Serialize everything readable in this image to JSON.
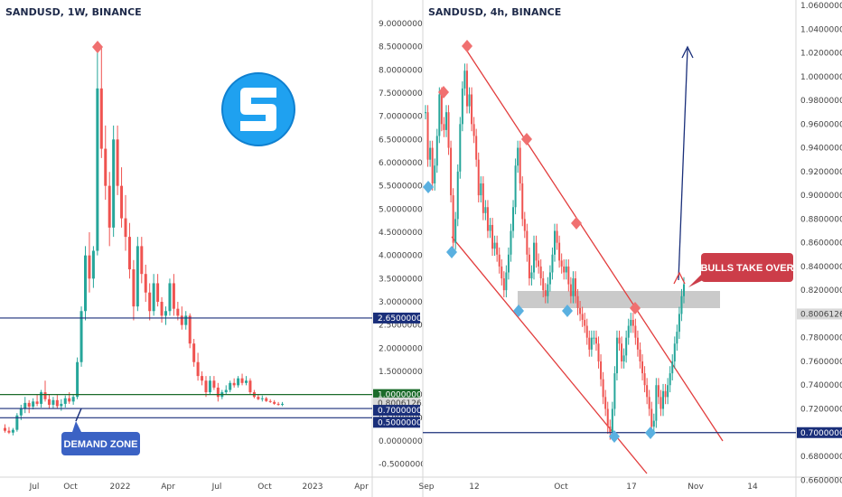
{
  "chart_data": [
    {
      "type": "candlestick",
      "title": "SANDUSD, 1W, BINANCE",
      "x_ticks": [
        "Jul",
        "Oct",
        "2022",
        "Apr",
        "Jul",
        "Oct",
        "2023",
        "Apr"
      ],
      "y_ticks": [
        "9.00000000",
        "8.50000000",
        "8.00000000",
        "7.50000000",
        "7.00000000",
        "6.50000000",
        "6.00000000",
        "5.50000000",
        "5.00000000",
        "4.50000000",
        "4.00000000",
        "3.50000000",
        "3.00000000",
        "2.50000000",
        "2.00000000",
        "1.50000000",
        "1.00000000",
        "0.50000000",
        "0.00000000",
        "-0.50000000"
      ],
      "ylim": [
        -0.5,
        9.5
      ],
      "price_tags": [
        {
          "label": "2.65000000",
          "value": 2.65,
          "color": "#1a2f7a"
        },
        {
          "label": "1.00000000",
          "value": 1.0,
          "color": "#1b6b2a"
        },
        {
          "label": "0.80061265",
          "value": 0.8,
          "color": "#d9d9d9"
        },
        {
          "label": "0.70000000",
          "value": 0.7,
          "color": "#1a2f7a"
        },
        {
          "label": "0.50000000",
          "value": 0.5,
          "color": "#1a2f7a"
        }
      ],
      "annotations": [
        "DEMAND ZONE"
      ],
      "series": [
        {
          "values": [
            [
              0.28,
              0.36,
              0.18,
              0.22
            ],
            [
              0.22,
              0.3,
              0.15,
              0.18
            ],
            [
              0.18,
              0.28,
              0.12,
              0.24
            ],
            [
              0.24,
              0.6,
              0.2,
              0.55
            ],
            [
              0.55,
              0.78,
              0.45,
              0.7
            ],
            [
              0.7,
              0.95,
              0.6,
              0.82
            ],
            [
              0.82,
              0.88,
              0.6,
              0.74
            ],
            [
              0.74,
              0.92,
              0.68,
              0.85
            ],
            [
              0.85,
              1.0,
              0.75,
              0.8
            ],
            [
              0.8,
              1.1,
              0.72,
              1.05
            ],
            [
              1.05,
              1.3,
              0.85,
              0.9
            ],
            [
              0.9,
              1.0,
              0.7,
              0.78
            ],
            [
              0.78,
              0.95,
              0.7,
              0.88
            ],
            [
              0.88,
              1.0,
              0.7,
              0.75
            ],
            [
              0.75,
              0.9,
              0.65,
              0.8
            ],
            [
              0.8,
              0.98,
              0.72,
              0.92
            ],
            [
              0.92,
              1.05,
              0.8,
              0.85
            ],
            [
              0.85,
              1.0,
              0.78,
              0.95
            ],
            [
              0.95,
              1.8,
              0.9,
              1.7
            ],
            [
              1.7,
              2.9,
              1.6,
              2.8
            ],
            [
              2.8,
              4.2,
              2.6,
              4.0
            ],
            [
              4.0,
              4.5,
              3.2,
              3.5
            ],
            [
              3.5,
              4.2,
              3.3,
              4.1
            ],
            [
              4.1,
              8.4,
              4.0,
              7.6
            ],
            [
              7.6,
              8.5,
              6.1,
              6.3
            ],
            [
              6.3,
              6.8,
              5.2,
              5.5
            ],
            [
              5.5,
              5.8,
              4.2,
              4.6
            ],
            [
              4.6,
              6.8,
              4.4,
              6.5
            ],
            [
              6.5,
              6.8,
              5.3,
              5.5
            ],
            [
              5.5,
              5.9,
              4.6,
              4.8
            ],
            [
              4.8,
              5.3,
              4.1,
              4.4
            ],
            [
              4.4,
              4.7,
              3.5,
              3.7
            ],
            [
              3.7,
              3.9,
              2.6,
              2.9
            ],
            [
              2.9,
              4.4,
              2.8,
              4.2
            ],
            [
              4.2,
              4.4,
              3.4,
              3.6
            ],
            [
              3.6,
              3.8,
              3.0,
              3.2
            ],
            [
              3.2,
              3.4,
              2.6,
              2.8
            ],
            [
              2.8,
              3.6,
              2.7,
              3.4
            ],
            [
              3.4,
              3.6,
              2.9,
              3.0
            ],
            [
              3.0,
              3.1,
              2.55,
              2.7
            ],
            [
              2.7,
              2.9,
              2.5,
              2.8
            ],
            [
              2.8,
              3.5,
              2.7,
              3.4
            ],
            [
              3.4,
              3.6,
              2.7,
              2.85
            ],
            [
              2.85,
              3.0,
              2.6,
              2.7
            ],
            [
              2.7,
              2.9,
              2.4,
              2.5
            ],
            [
              2.5,
              2.8,
              2.4,
              2.7
            ],
            [
              2.7,
              2.75,
              2.0,
              2.1
            ],
            [
              2.1,
              2.2,
              1.6,
              1.7
            ],
            [
              1.7,
              1.9,
              1.3,
              1.4
            ],
            [
              1.4,
              1.5,
              1.2,
              1.3
            ],
            [
              1.3,
              1.4,
              0.95,
              1.05
            ],
            [
              1.05,
              1.4,
              1.0,
              1.3
            ],
            [
              1.3,
              1.4,
              1.1,
              1.15
            ],
            [
              1.15,
              1.25,
              0.85,
              0.95
            ],
            [
              0.95,
              1.1,
              0.9,
              1.05
            ],
            [
              1.05,
              1.2,
              1.0,
              1.1
            ],
            [
              1.1,
              1.3,
              1.05,
              1.25
            ],
            [
              1.25,
              1.35,
              1.15,
              1.2
            ],
            [
              1.2,
              1.4,
              1.15,
              1.35
            ],
            [
              1.35,
              1.45,
              1.2,
              1.25
            ],
            [
              1.25,
              1.4,
              1.2,
              1.3
            ],
            [
              1.3,
              1.35,
              1.0,
              1.05
            ],
            [
              1.05,
              1.1,
              0.92,
              0.95
            ],
            [
              0.95,
              1.0,
              0.88,
              0.9
            ],
            [
              0.9,
              0.98,
              0.85,
              0.92
            ],
            [
              0.92,
              0.95,
              0.84,
              0.86
            ],
            [
              0.86,
              0.9,
              0.82,
              0.84
            ],
            [
              0.84,
              0.88,
              0.78,
              0.8
            ],
            [
              0.8,
              0.84,
              0.76,
              0.78
            ],
            [
              0.78,
              0.84,
              0.75,
              0.8
            ]
          ]
        }
      ]
    },
    {
      "type": "candlestick",
      "title": "SANDUSD, 4h, BINANCE",
      "x_ticks": [
        "Sep",
        "12",
        "Oct",
        "17",
        "Nov",
        "14"
      ],
      "y_ticks": [
        "1.06000000",
        "1.04000000",
        "1.02000000",
        "1.00000000",
        "0.98000000",
        "0.96000000",
        "0.94000000",
        "0.92000000",
        "0.90000000",
        "0.88000000",
        "0.86000000",
        "0.84000000",
        "0.82000000",
        "0.80000000",
        "0.78000000",
        "0.76000000",
        "0.74000000",
        "0.72000000",
        "0.70000000",
        "0.68000000",
        "0.66000000"
      ],
      "ylim": [
        0.66,
        1.07
      ],
      "price_tags": [
        {
          "label": "0.80061265",
          "value": 0.8,
          "color": "#d9d9d9"
        },
        {
          "label": "0.70000000",
          "value": 0.7,
          "color": "#1a2f7a"
        }
      ],
      "annotations": [
        "BULLS TAKE OVER"
      ],
      "series": [
        {
          "values": [
            0.97,
            0.93,
            0.94,
            0.91,
            0.925,
            0.95,
            0.985,
            0.96,
            0.955,
            0.97,
            0.94,
            0.9,
            0.86,
            0.88,
            0.92,
            0.96,
            0.99,
            1.005,
            0.975,
            0.985,
            0.96,
            0.95,
            0.93,
            0.9,
            0.91,
            0.885,
            0.89,
            0.87,
            0.875,
            0.855,
            0.86,
            0.85,
            0.84,
            0.83,
            0.82,
            0.835,
            0.85,
            0.87,
            0.89,
            0.925,
            0.94,
            0.91,
            0.88,
            0.87,
            0.85,
            0.83,
            0.835,
            0.86,
            0.845,
            0.84,
            0.83,
            0.82,
            0.815,
            0.825,
            0.835,
            0.85,
            0.87,
            0.86,
            0.845,
            0.84,
            0.835,
            0.84,
            0.825,
            0.815,
            0.83,
            0.815,
            0.805,
            0.8,
            0.795,
            0.79,
            0.78,
            0.77,
            0.78,
            0.78,
            0.775,
            0.76,
            0.745,
            0.73,
            0.72,
            0.705,
            0.7,
            0.72,
            0.75,
            0.78,
            0.775,
            0.76,
            0.765,
            0.78,
            0.79,
            0.795,
            0.79,
            0.78,
            0.77,
            0.76,
            0.75,
            0.74,
            0.73,
            0.72,
            0.705,
            0.71,
            0.74,
            0.73,
            0.72,
            0.735,
            0.73,
            0.74,
            0.75,
            0.76,
            0.775,
            0.785,
            0.8,
            0.815,
            0.825
          ]
        }
      ]
    }
  ]
}
